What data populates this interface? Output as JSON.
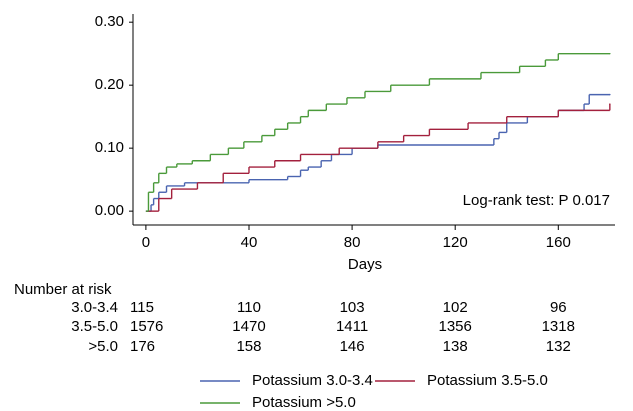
{
  "chart_data": {
    "type": "step",
    "x_label": "Days",
    "annotation": "Log-rank test: P 0.017",
    "xlim": [
      -5,
      182
    ],
    "xticks": [
      0,
      40,
      80,
      120,
      160
    ],
    "ylim": [
      -0.022,
      0.313
    ],
    "yticks": [
      {
        "value": 0.3,
        "label": "0.30"
      },
      {
        "value": 0.2,
        "label": "0.20"
      },
      {
        "value": 0.1,
        "label": "0.10"
      },
      {
        "value": 0,
        "label": "0.00"
      }
    ],
    "series": [
      {
        "name": "Potassium 3.0-3.4",
        "color": "#4a64b0",
        "x": [
          0,
          2,
          3,
          5,
          8,
          15,
          40,
          55,
          60,
          63,
          68,
          72,
          80,
          90,
          135,
          137,
          140,
          148,
          160,
          170,
          172,
          180
        ],
        "values": [
          0,
          0.01,
          0.02,
          0.03,
          0.04,
          0.045,
          0.05,
          0.055,
          0.065,
          0.07,
          0.08,
          0.09,
          0.1,
          0.105,
          0.115,
          0.125,
          0.14,
          0.15,
          0.16,
          0.17,
          0.185,
          0.185
        ]
      },
      {
        "name": "Potassium 3.5-5.0",
        "color": "#a3203d",
        "x": [
          0,
          5,
          10,
          20,
          30,
          40,
          50,
          60,
          75,
          90,
          100,
          110,
          125,
          140,
          160,
          180
        ],
        "values": [
          0,
          0.02,
          0.035,
          0.045,
          0.06,
          0.07,
          0.08,
          0.09,
          0.1,
          0.11,
          0.12,
          0.13,
          0.14,
          0.15,
          0.16,
          0.17
        ]
      },
      {
        "name": "Potassium >5.0",
        "color": "#4a9a3a",
        "x": [
          0,
          1,
          3,
          5,
          8,
          12,
          18,
          25,
          32,
          38,
          45,
          50,
          55,
          60,
          63,
          70,
          78,
          85,
          95,
          110,
          130,
          145,
          155,
          160,
          180
        ],
        "values": [
          0,
          0.03,
          0.045,
          0.06,
          0.07,
          0.075,
          0.08,
          0.09,
          0.1,
          0.11,
          0.12,
          0.13,
          0.14,
          0.15,
          0.16,
          0.17,
          0.18,
          0.19,
          0.2,
          0.21,
          0.22,
          0.23,
          0.24,
          0.25,
          0.25
        ]
      }
    ],
    "risk_table": {
      "title": "Number at risk",
      "rows": [
        {
          "label": "3.0-3.4",
          "values": [
            115,
            110,
            103,
            102,
            96
          ]
        },
        {
          "label": "3.5-5.0",
          "values": [
            1576,
            1470,
            1411,
            1356,
            1318
          ]
        },
        {
          "label": ">5.0",
          "values": [
            176,
            158,
            146,
            138,
            132
          ]
        }
      ]
    }
  }
}
